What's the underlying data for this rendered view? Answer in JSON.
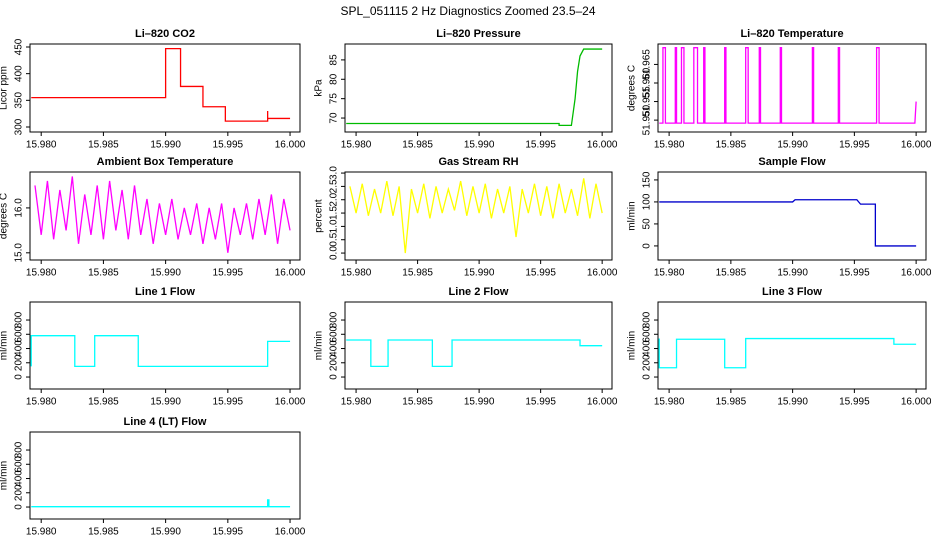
{
  "title": "SPL_051115  2 Hz Diagnostics Zoomed 23.5–24",
  "chart_data": [
    {
      "type": "line",
      "title": "Li–820 CO2",
      "ylabel": "Licor ppm",
      "color": "#ff0000",
      "x": [
        15.9792,
        15.99,
        15.99,
        15.9912,
        15.9912,
        15.993,
        15.993,
        15.9948,
        15.9948,
        15.9982,
        15.9982,
        15.9982,
        16.0
      ],
      "values": [
        355,
        355,
        447,
        447,
        376,
        376,
        338,
        338,
        311,
        311,
        330,
        316,
        316
      ],
      "xlim": [
        15.9791,
        16.0008
      ],
      "xticks": [
        {
          "value": 15.98,
          "label": "15.980"
        },
        {
          "value": 15.985,
          "label": "15.985"
        },
        {
          "value": 15.99,
          "label": "15.990"
        },
        {
          "value": 15.995,
          "label": "15.995"
        },
        {
          "value": 16.0,
          "label": "16.000"
        }
      ],
      "ylim": [
        290.6,
        455.6
      ],
      "yticks": [
        300,
        350,
        400,
        450
      ]
    },
    {
      "type": "line",
      "title": "Li–820 Pressure",
      "ylabel": "kPa",
      "color": "#00bb00",
      "x": [
        15.9792,
        15.9965,
        15.9965,
        15.9975,
        15.9978,
        15.998,
        15.9982,
        15.9985,
        16.0
      ],
      "values": [
        68.6,
        68.6,
        68.1,
        68.1,
        75,
        82,
        86,
        87.8,
        87.8
      ],
      "xlim": [
        15.9791,
        16.0008
      ],
      "xticks": [
        {
          "value": 15.98,
          "label": "15.980"
        },
        {
          "value": 15.985,
          "label": "15.985"
        },
        {
          "value": 15.99,
          "label": "15.990"
        },
        {
          "value": 15.995,
          "label": "15.995"
        },
        {
          "value": 16.0,
          "label": "16.000"
        }
      ],
      "ylim": [
        66.4,
        89.1
      ],
      "yticks": [
        70,
        75,
        80,
        85
      ]
    },
    {
      "type": "line",
      "title": "Li–820 Temperature",
      "ylabel": "degrees C",
      "color": "#ff00ff",
      "x": [
        15.9792,
        15.9795,
        15.9795,
        15.9797,
        15.9797,
        15.9805,
        15.9805,
        15.9806,
        15.9806,
        15.981,
        15.981,
        15.9812,
        15.9812,
        15.982,
        15.982,
        15.9823,
        15.9823,
        15.9828,
        15.9828,
        15.9829,
        15.9829,
        15.9845,
        15.9845,
        15.9846,
        15.9846,
        15.9862,
        15.9862,
        15.9864,
        15.9864,
        15.9873,
        15.9873,
        15.9874,
        15.9874,
        15.989,
        15.989,
        15.9891,
        15.9891,
        15.9916,
        15.9916,
        15.9917,
        15.9917,
        15.9937,
        15.9937,
        15.9938,
        15.9938,
        15.9968,
        15.9968,
        15.997,
        15.997,
        15.9999,
        16.0
      ],
      "values": [
        51.9492,
        51.9492,
        51.9695,
        51.9695,
        51.9492,
        51.9492,
        51.9695,
        51.9695,
        51.9492,
        51.9492,
        51.9695,
        51.9695,
        51.9492,
        51.9492,
        51.9695,
        51.9695,
        51.9492,
        51.9492,
        51.9695,
        51.9695,
        51.9492,
        51.9492,
        51.9695,
        51.9695,
        51.9492,
        51.9492,
        51.9695,
        51.9695,
        51.9492,
        51.9492,
        51.9695,
        51.9695,
        51.9492,
        51.9492,
        51.9695,
        51.9695,
        51.9492,
        51.9492,
        51.9695,
        51.9695,
        51.9492,
        51.9492,
        51.9695,
        51.9695,
        51.9492,
        51.9492,
        51.9695,
        51.9695,
        51.9492,
        51.9492,
        51.955
      ],
      "xlim": [
        15.9791,
        16.0008
      ],
      "xticks": [
        {
          "value": 15.98,
          "label": "15.980"
        },
        {
          "value": 15.985,
          "label": "15.985"
        },
        {
          "value": 15.99,
          "label": "15.990"
        },
        {
          "value": 15.995,
          "label": "15.995"
        },
        {
          "value": 16.0,
          "label": "16.000"
        }
      ],
      "ylim": [
        51.9468,
        51.9705
      ],
      "yticks": [
        {
          "value": 51.95,
          "label": "51.950"
        },
        {
          "value": 51.955,
          "label": "51.955"
        },
        {
          "value": 51.96,
          "label": "51.960"
        },
        {
          "value": 51.965,
          "label": "51.965"
        }
      ]
    },
    {
      "type": "line",
      "title": "Ambient Box Temperature",
      "ylabel": "degrees C",
      "color": "#ff00ff",
      "x": [
        15.9795,
        15.98,
        15.9805,
        15.981,
        15.9815,
        15.982,
        15.9825,
        15.983,
        15.9835,
        15.984,
        15.9845,
        15.985,
        15.9855,
        15.986,
        15.9865,
        15.987,
        15.9875,
        15.988,
        15.9885,
        15.989,
        15.9895,
        15.99,
        15.9905,
        15.991,
        15.9915,
        15.992,
        15.9925,
        15.993,
        15.9935,
        15.994,
        15.9945,
        15.995,
        15.9955,
        15.996,
        15.9965,
        15.997,
        15.9975,
        15.998,
        15.9985,
        15.999,
        15.9995,
        16.0
      ],
      "values": [
        16.5,
        15.4,
        16.6,
        15.3,
        16.4,
        15.5,
        16.7,
        15.2,
        16.3,
        15.4,
        16.5,
        15.3,
        16.6,
        15.5,
        16.4,
        15.3,
        16.5,
        15.4,
        16.2,
        15.2,
        16.1,
        15.4,
        16.2,
        15.3,
        16.0,
        15.4,
        16.1,
        15.2,
        16.0,
        15.3,
        16.1,
        15.0,
        16.0,
        15.4,
        16.1,
        15.3,
        16.2,
        15.4,
        16.3,
        15.2,
        16.2,
        15.5
      ],
      "xlim": [
        15.9791,
        16.0008
      ],
      "xticks": [
        {
          "value": 15.98,
          "label": "15.980"
        },
        {
          "value": 15.985,
          "label": "15.985"
        },
        {
          "value": 15.99,
          "label": "15.990"
        },
        {
          "value": 15.995,
          "label": "15.995"
        },
        {
          "value": 16.0,
          "label": "16.000"
        }
      ],
      "ylim": [
        14.84,
        16.8
      ],
      "yticks": [
        {
          "value": 15.0,
          "label": "15.0"
        },
        {
          "value": 16.0,
          "label": "16.0"
        }
      ]
    },
    {
      "type": "line",
      "title": "Gas Stream RH",
      "ylabel": "percent",
      "color": "#ffff00",
      "x": [
        15.9795,
        15.98,
        15.9805,
        15.981,
        15.9815,
        15.982,
        15.9825,
        15.983,
        15.9835,
        15.984,
        15.9845,
        15.985,
        15.9855,
        15.986,
        15.9865,
        15.987,
        15.9875,
        15.988,
        15.9885,
        15.989,
        15.9895,
        15.99,
        15.9905,
        15.991,
        15.9915,
        15.992,
        15.9925,
        15.993,
        15.9935,
        15.994,
        15.9945,
        15.995,
        15.9955,
        15.996,
        15.9965,
        15.997,
        15.9975,
        15.998,
        15.9985,
        15.999,
        15.9995,
        16.0
      ],
      "values": [
        2.5,
        1.5,
        2.6,
        1.4,
        2.4,
        1.5,
        2.7,
        1.4,
        2.5,
        0.0,
        2.4,
        1.5,
        2.6,
        1.3,
        2.5,
        1.5,
        2.4,
        1.6,
        2.7,
        1.4,
        2.5,
        1.5,
        2.6,
        1.3,
        2.4,
        1.5,
        2.5,
        0.6,
        2.4,
        1.5,
        2.6,
        1.4,
        2.5,
        1.3,
        2.6,
        1.5,
        2.4,
        1.4,
        2.8,
        1.3,
        2.6,
        1.5
      ],
      "xlim": [
        15.9791,
        16.0008
      ],
      "xticks": [
        {
          "value": 15.98,
          "label": "15.980"
        },
        {
          "value": 15.985,
          "label": "15.985"
        },
        {
          "value": 15.99,
          "label": "15.990"
        },
        {
          "value": 15.995,
          "label": "15.995"
        },
        {
          "value": 16.0,
          "label": "16.000"
        }
      ],
      "ylim": [
        -0.26,
        3.04
      ],
      "yticks": [
        {
          "value": 0,
          "label": "0.0"
        },
        {
          "value": 0.5,
          "label": "0.5"
        },
        {
          "value": 1,
          "label": "1.0"
        },
        {
          "value": 1.5,
          "label": "1.5"
        },
        {
          "value": 2,
          "label": "2.0"
        },
        {
          "value": 2.5,
          "label": "2.5"
        },
        {
          "value": 3,
          "label": "3.0"
        }
      ]
    },
    {
      "type": "line",
      "title": "Sample Flow",
      "ylabel": "ml/min",
      "color": "#0000cc",
      "x": [
        15.9792,
        15.99,
        15.9902,
        15.9952,
        15.9955,
        15.9967,
        15.9967,
        16.0
      ],
      "values": [
        100,
        100,
        105,
        105,
        95,
        95,
        0,
        0
      ],
      "xlim": [
        15.9791,
        16.0008
      ],
      "xticks": [
        {
          "value": 15.98,
          "label": "15.980"
        },
        {
          "value": 15.985,
          "label": "15.985"
        },
        {
          "value": 15.99,
          "label": "15.990"
        },
        {
          "value": 15.995,
          "label": "15.995"
        },
        {
          "value": 16.0,
          "label": "16.000"
        }
      ],
      "ylim": [
        -32,
        168
      ],
      "yticks": [
        0,
        50,
        100,
        150
      ]
    },
    {
      "type": "line",
      "title": "Line 1 Flow",
      "ylabel": "ml/min",
      "color": "#00ffff",
      "x": [
        15.9792,
        15.9792,
        15.9827,
        15.9827,
        15.9843,
        15.9843,
        15.9878,
        15.9878,
        15.9982,
        15.9982,
        16.0
      ],
      "values": [
        150,
        580,
        580,
        150,
        150,
        580,
        580,
        150,
        150,
        500,
        500
      ],
      "xlim": [
        15.9791,
        16.0008
      ],
      "xticks": [
        {
          "value": 15.98,
          "label": "15.980"
        },
        {
          "value": 15.985,
          "label": "15.985"
        },
        {
          "value": 15.99,
          "label": "15.990"
        },
        {
          "value": 15.995,
          "label": "15.995"
        },
        {
          "value": 16.0,
          "label": "16.000"
        }
      ],
      "ylim": [
        -168,
        1053
      ],
      "yticks": [
        0,
        200,
        400,
        600,
        800
      ]
    },
    {
      "type": "line",
      "title": "Line 2 Flow",
      "ylabel": "ml/min",
      "color": "#00ffff",
      "x": [
        15.9792,
        15.9812,
        15.9812,
        15.9826,
        15.9826,
        15.9862,
        15.9862,
        15.9878,
        15.9878,
        15.9982,
        15.9982,
        16.0
      ],
      "values": [
        520,
        520,
        150,
        150,
        520,
        520,
        150,
        150,
        520,
        520,
        440,
        440
      ],
      "xlim": [
        15.9791,
        16.0008
      ],
      "xticks": [
        {
          "value": 15.98,
          "label": "15.980"
        },
        {
          "value": 15.985,
          "label": "15.985"
        },
        {
          "value": 15.99,
          "label": "15.990"
        },
        {
          "value": 15.995,
          "label": "15.995"
        },
        {
          "value": 16.0,
          "label": "16.000"
        }
      ],
      "ylim": [
        -168,
        1053
      ],
      "yticks": [
        0,
        200,
        400,
        600,
        800
      ]
    },
    {
      "type": "line",
      "title": "Line 3 Flow",
      "ylabel": "ml/min",
      "color": "#00ffff",
      "x": [
        15.9792,
        15.9792,
        15.9806,
        15.9806,
        15.9845,
        15.9845,
        15.9862,
        15.9862,
        15.9982,
        15.9982,
        16.0
      ],
      "values": [
        540,
        130,
        130,
        530,
        530,
        130,
        130,
        540,
        540,
        460,
        460
      ],
      "xlim": [
        15.9791,
        16.0008
      ],
      "xticks": [
        {
          "value": 15.98,
          "label": "15.980"
        },
        {
          "value": 15.985,
          "label": "15.985"
        },
        {
          "value": 15.99,
          "label": "15.990"
        },
        {
          "value": 15.995,
          "label": "15.995"
        },
        {
          "value": 16.0,
          "label": "16.000"
        }
      ],
      "ylim": [
        -168,
        1053
      ],
      "yticks": [
        0,
        200,
        400,
        600,
        800
      ]
    },
    {
      "type": "line",
      "title": "Line 4 (LT) Flow",
      "ylabel": "ml/min",
      "color": "#00ffff",
      "x": [
        15.9792,
        15.9982,
        15.9982,
        15.9983,
        15.9983,
        16.0
      ],
      "values": [
        5,
        5,
        100,
        100,
        5,
        5
      ],
      "xlim": [
        15.9791,
        16.0008
      ],
      "xticks": [
        {
          "value": 15.98,
          "label": "15.980"
        },
        {
          "value": 15.985,
          "label": "15.985"
        },
        {
          "value": 15.99,
          "label": "15.990"
        },
        {
          "value": 15.995,
          "label": "15.995"
        },
        {
          "value": 16.0,
          "label": "16.000"
        }
      ],
      "ylim": [
        -168,
        1053
      ],
      "yticks": [
        0,
        200,
        400,
        600,
        800
      ]
    }
  ]
}
